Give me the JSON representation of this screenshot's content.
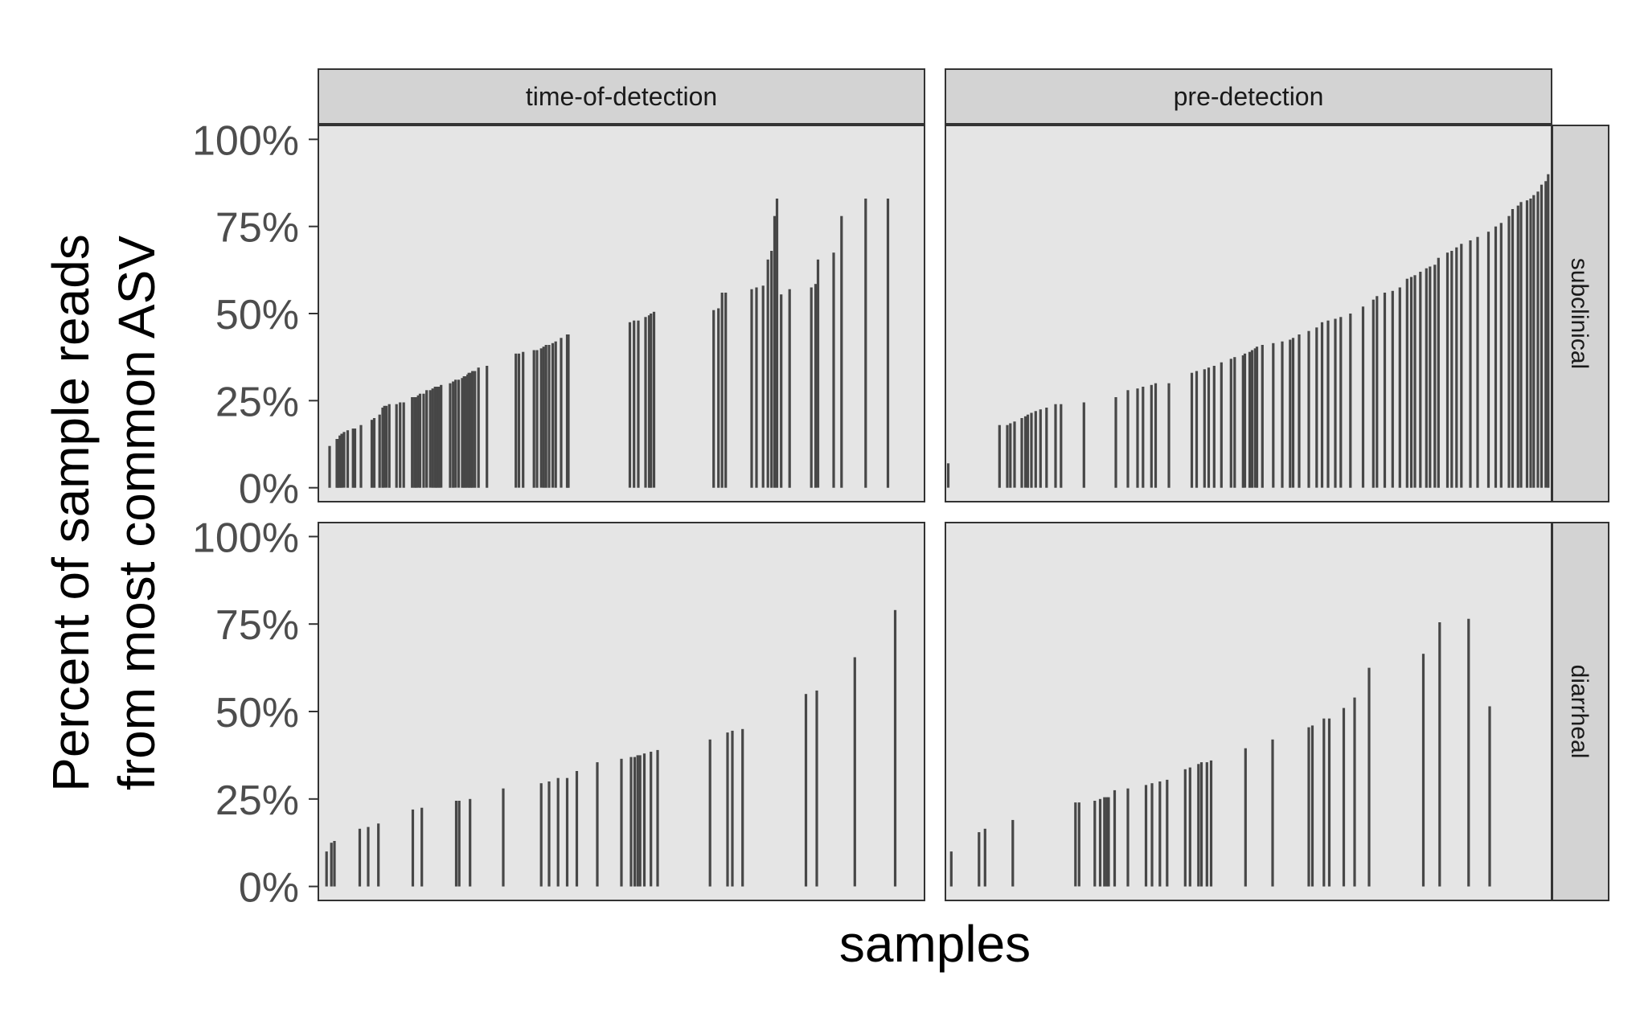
{
  "chart_data": {
    "type": "bar",
    "facet_cols": [
      "time-of-detection",
      "pre-detection"
    ],
    "facet_rows": [
      "subclinical",
      "diarrheal"
    ],
    "xlabel": "samples",
    "ylabel_lines": [
      "Percent of sample reads",
      "from most common ASV"
    ],
    "yticks": [
      "0%",
      "25%",
      "50%",
      "75%",
      "100%"
    ],
    "ytick_values": [
      0,
      0.25,
      0.5,
      0.75,
      1.0
    ],
    "ylim": [
      -0.04,
      1.04
    ],
    "x_scale": "sample rank within panel (0–1)",
    "bar_color": "#474747",
    "panel_color": "#e5e5e5",
    "strip_color": "#d3d3d3",
    "grid": false,
    "panels": [
      {
        "col": "time-of-detection",
        "row": "subclinical",
        "x": [
          0.016,
          0.028,
          0.03,
          0.033,
          0.036,
          0.04,
          0.046,
          0.055,
          0.058,
          0.068,
          0.086,
          0.09,
          0.099,
          0.104,
          0.107,
          0.11,
          0.115,
          0.127,
          0.133,
          0.139,
          0.153,
          0.157,
          0.16,
          0.163,
          0.166,
          0.172,
          0.177,
          0.183,
          0.187,
          0.191,
          0.194,
          0.198,
          0.201,
          0.216,
          0.221,
          0.225,
          0.23,
          0.236,
          0.239,
          0.242,
          0.245,
          0.247,
          0.25,
          0.253,
          0.257,
          0.263,
          0.277,
          0.325,
          0.33,
          0.337,
          0.355,
          0.36,
          0.367,
          0.371,
          0.375,
          0.38,
          0.386,
          0.391,
          0.4,
          0.41,
          0.412,
          0.514,
          0.521,
          0.528,
          0.54,
          0.546,
          0.549,
          0.554,
          0.653,
          0.661,
          0.667,
          0.673,
          0.716,
          0.724,
          0.735,
          0.743,
          0.749,
          0.754,
          0.758,
          0.765,
          0.779,
          0.815,
          0.822,
          0.826,
          0.852,
          0.865,
          0.905,
          0.942
        ],
        "values": [
          0.12,
          0.14,
          0.14,
          0.15,
          0.155,
          0.16,
          0.165,
          0.17,
          0.17,
          0.18,
          0.195,
          0.2,
          0.21,
          0.23,
          0.235,
          0.235,
          0.24,
          0.24,
          0.245,
          0.245,
          0.26,
          0.26,
          0.26,
          0.265,
          0.27,
          0.27,
          0.28,
          0.28,
          0.285,
          0.29,
          0.29,
          0.29,
          0.295,
          0.3,
          0.305,
          0.31,
          0.31,
          0.315,
          0.32,
          0.32,
          0.325,
          0.33,
          0.33,
          0.335,
          0.335,
          0.345,
          0.35,
          0.385,
          0.385,
          0.39,
          0.395,
          0.395,
          0.4,
          0.405,
          0.41,
          0.41,
          0.415,
          0.42,
          0.43,
          0.44,
          0.44,
          0.475,
          0.48,
          0.48,
          0.49,
          0.495,
          0.5,
          0.505,
          0.51,
          0.515,
          0.56,
          0.56,
          0.57,
          0.575,
          0.58,
          0.655,
          0.68,
          0.78,
          0.83,
          0.555,
          0.57,
          0.575,
          0.585,
          0.655,
          0.675,
          0.78,
          0.83,
          0.83
        ]
      },
      {
        "col": "pre-detection",
        "row": "subclinical",
        "x": [
          0.002,
          0.087,
          0.1,
          0.105,
          0.112,
          0.124,
          0.13,
          0.134,
          0.14,
          0.147,
          0.155,
          0.165,
          0.18,
          0.189,
          0.227,
          0.28,
          0.3,
          0.316,
          0.325,
          0.339,
          0.346,
          0.368,
          0.406,
          0.414,
          0.427,
          0.434,
          0.443,
          0.455,
          0.471,
          0.477,
          0.491,
          0.494,
          0.502,
          0.506,
          0.511,
          0.514,
          0.523,
          0.541,
          0.556,
          0.569,
          0.574,
          0.584,
          0.6,
          0.613,
          0.622,
          0.632,
          0.644,
          0.653,
          0.669,
          0.69,
          0.707,
          0.713,
          0.726,
          0.739,
          0.751,
          0.763,
          0.77,
          0.776,
          0.785,
          0.795,
          0.801,
          0.809,
          0.815,
          0.83,
          0.837,
          0.845,
          0.853,
          0.868,
          0.88,
          0.898,
          0.91,
          0.919,
          0.932,
          0.938,
          0.947,
          0.952,
          0.962,
          0.968,
          0.973,
          0.98,
          0.986,
          0.993,
          0.997
        ],
        "values": [
          0.07,
          0.18,
          0.18,
          0.185,
          0.19,
          0.2,
          0.205,
          0.21,
          0.215,
          0.22,
          0.225,
          0.23,
          0.24,
          0.24,
          0.245,
          0.26,
          0.28,
          0.285,
          0.29,
          0.295,
          0.3,
          0.3,
          0.33,
          0.335,
          0.34,
          0.345,
          0.35,
          0.36,
          0.37,
          0.375,
          0.38,
          0.385,
          0.39,
          0.395,
          0.4,
          0.405,
          0.41,
          0.415,
          0.42,
          0.425,
          0.43,
          0.44,
          0.45,
          0.46,
          0.475,
          0.48,
          0.485,
          0.49,
          0.5,
          0.52,
          0.54,
          0.55,
          0.56,
          0.565,
          0.575,
          0.6,
          0.605,
          0.61,
          0.62,
          0.63,
          0.635,
          0.64,
          0.66,
          0.675,
          0.68,
          0.69,
          0.7,
          0.71,
          0.72,
          0.735,
          0.75,
          0.76,
          0.78,
          0.8,
          0.81,
          0.82,
          0.825,
          0.83,
          0.84,
          0.85,
          0.87,
          0.88,
          0.9
        ]
      },
      {
        "col": "time-of-detection",
        "row": "diarrheal",
        "x": [
          0.011,
          0.019,
          0.024,
          0.066,
          0.08,
          0.097,
          0.154,
          0.169,
          0.226,
          0.231,
          0.249,
          0.304,
          0.367,
          0.38,
          0.395,
          0.41,
          0.426,
          0.46,
          0.5,
          0.516,
          0.522,
          0.527,
          0.531,
          0.538,
          0.549,
          0.56,
          0.647,
          0.676,
          0.684,
          0.701,
          0.806,
          0.824,
          0.887,
          0.954
        ],
        "values": [
          0.1,
          0.125,
          0.13,
          0.165,
          0.17,
          0.18,
          0.22,
          0.225,
          0.245,
          0.245,
          0.25,
          0.28,
          0.295,
          0.3,
          0.31,
          0.31,
          0.33,
          0.355,
          0.365,
          0.37,
          0.37,
          0.375,
          0.375,
          0.38,
          0.385,
          0.39,
          0.42,
          0.44,
          0.445,
          0.45,
          0.55,
          0.56,
          0.655,
          0.79
        ]
      },
      {
        "col": "pre-detection",
        "row": "diarrheal",
        "x": [
          0.007,
          0.053,
          0.063,
          0.109,
          0.213,
          0.219,
          0.245,
          0.254,
          0.261,
          0.265,
          0.268,
          0.278,
          0.3,
          0.33,
          0.34,
          0.353,
          0.365,
          0.395,
          0.403,
          0.417,
          0.422,
          0.431,
          0.438,
          0.495,
          0.54,
          0.6,
          0.606,
          0.625,
          0.634,
          0.658,
          0.676,
          0.7,
          0.79,
          0.817,
          0.865,
          0.9
        ],
        "values": [
          0.1,
          0.155,
          0.165,
          0.19,
          0.24,
          0.24,
          0.245,
          0.25,
          0.255,
          0.255,
          0.255,
          0.275,
          0.28,
          0.29,
          0.295,
          0.3,
          0.305,
          0.335,
          0.34,
          0.35,
          0.355,
          0.355,
          0.36,
          0.395,
          0.42,
          0.455,
          0.46,
          0.48,
          0.48,
          0.51,
          0.54,
          0.625,
          0.665,
          0.755,
          0.765,
          0.515
        ]
      }
    ]
  }
}
